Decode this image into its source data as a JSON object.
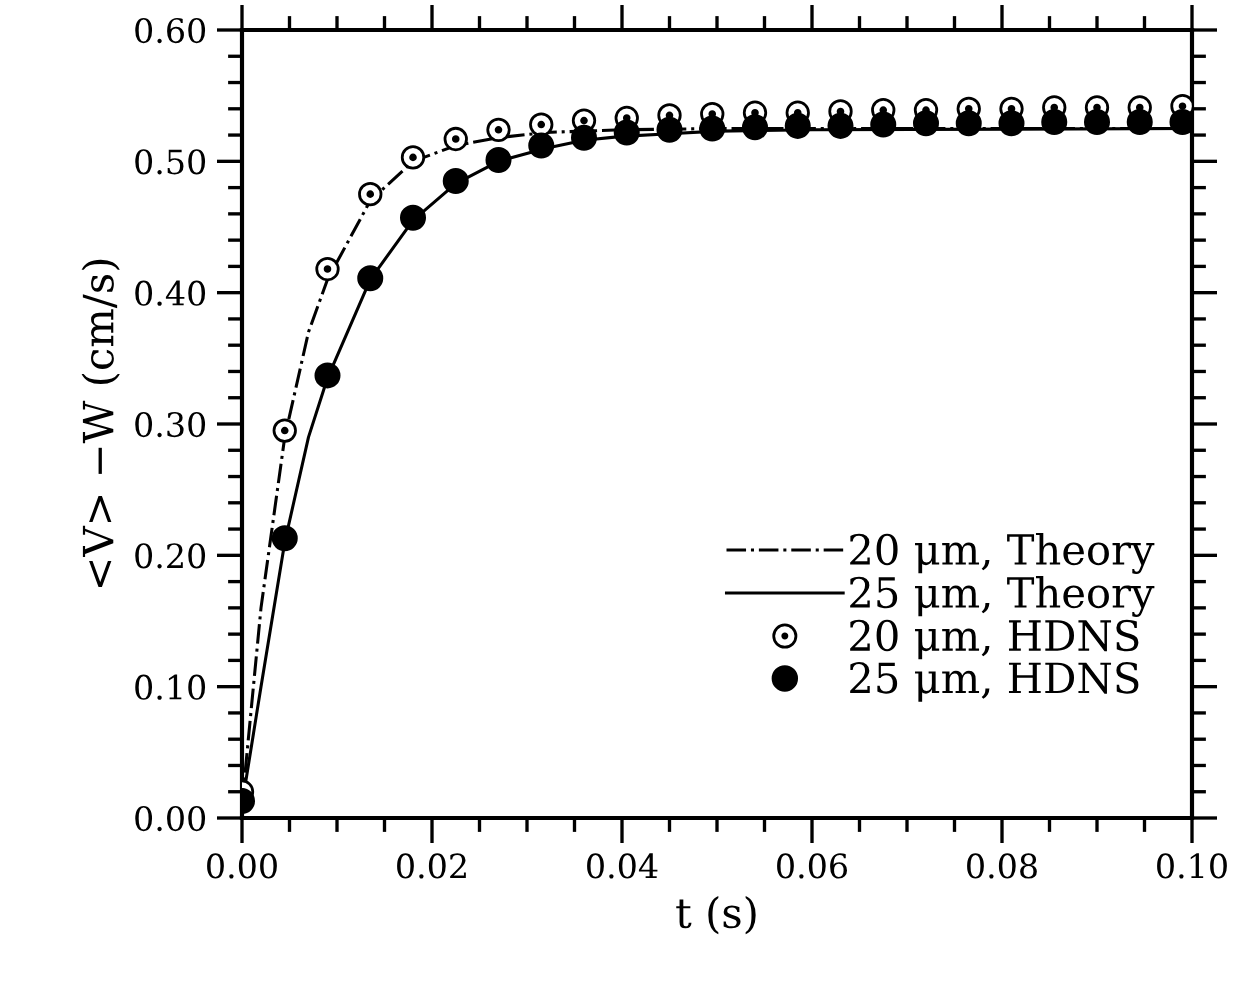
{
  "chart_data": {
    "type": "line",
    "xlabel": "t (s)",
    "ylabel": "<V> −W (cm/s)",
    "xlim": [
      0,
      0.1
    ],
    "ylim": [
      0,
      0.6
    ],
    "xticks": [
      {
        "value": 0,
        "label": "0.00"
      },
      {
        "value": 0.02,
        "label": "0.02"
      },
      {
        "value": 0.04,
        "label": "0.04"
      },
      {
        "value": 0.06,
        "label": "0.06"
      },
      {
        "value": 0.08,
        "label": "0.08"
      },
      {
        "value": 0.1,
        "label": "0.10"
      },
      {
        "value": 0.005,
        "label": null
      },
      {
        "value": 0.01,
        "label": null
      },
      {
        "value": 0.015,
        "label": null
      },
      {
        "value": 0.025,
        "label": null
      },
      {
        "value": 0.03,
        "label": null
      },
      {
        "value": 0.035,
        "label": null
      },
      {
        "value": 0.045,
        "label": null
      },
      {
        "value": 0.05,
        "label": null
      },
      {
        "value": 0.055,
        "label": null
      },
      {
        "value": 0.065,
        "label": null
      },
      {
        "value": 0.07,
        "label": null
      },
      {
        "value": 0.075,
        "label": null
      },
      {
        "value": 0.085,
        "label": null
      },
      {
        "value": 0.09,
        "label": null
      },
      {
        "value": 0.095,
        "label": null
      }
    ],
    "yticks": [
      {
        "value": 0,
        "label": "0.00"
      },
      {
        "value": 0.1,
        "label": "0.10"
      },
      {
        "value": 0.2,
        "label": "0.20"
      },
      {
        "value": 0.3,
        "label": "0.30"
      },
      {
        "value": 0.4,
        "label": "0.40"
      },
      {
        "value": 0.5,
        "label": "0.50"
      },
      {
        "value": 0.6,
        "label": "0.60"
      },
      {
        "value": 0.02,
        "label": null
      },
      {
        "value": 0.04,
        "label": null
      },
      {
        "value": 0.06,
        "label": null
      },
      {
        "value": 0.08,
        "label": null
      },
      {
        "value": 0.12,
        "label": null
      },
      {
        "value": 0.14,
        "label": null
      },
      {
        "value": 0.16,
        "label": null
      },
      {
        "value": 0.18,
        "label": null
      },
      {
        "value": 0.22,
        "label": null
      },
      {
        "value": 0.24,
        "label": null
      },
      {
        "value": 0.26,
        "label": null
      },
      {
        "value": 0.28,
        "label": null
      },
      {
        "value": 0.32,
        "label": null
      },
      {
        "value": 0.34,
        "label": null
      },
      {
        "value": 0.36,
        "label": null
      },
      {
        "value": 0.38,
        "label": null
      },
      {
        "value": 0.42,
        "label": null
      },
      {
        "value": 0.44,
        "label": null
      },
      {
        "value": 0.46,
        "label": null
      },
      {
        "value": 0.48,
        "label": null
      },
      {
        "value": 0.52,
        "label": null
      },
      {
        "value": 0.54,
        "label": null
      },
      {
        "value": 0.56,
        "label": null
      },
      {
        "value": 0.58,
        "label": null
      }
    ],
    "grid": false,
    "legend": "bottom right",
    "series": [
      {
        "name": "20 μm, Theory",
        "line_style": "dashdot",
        "color": "#000000",
        "x": [
          0,
          0.002,
          0.0045,
          0.007,
          0.009,
          0.0135,
          0.018,
          0.0225,
          0.027,
          0.032,
          0.04,
          0.05,
          0.1
        ],
        "values": [
          0.01,
          0.16,
          0.29,
          0.37,
          0.41,
          0.47,
          0.5,
          0.512,
          0.518,
          0.522,
          0.524,
          0.525,
          0.525
        ]
      },
      {
        "name": "25 μm, Theory",
        "line_style": "solid",
        "color": "#000000",
        "x": [
          0,
          0.002,
          0.0045,
          0.007,
          0.009,
          0.0135,
          0.018,
          0.0225,
          0.027,
          0.032,
          0.036,
          0.04,
          0.045,
          0.05,
          0.06,
          0.1
        ],
        "values": [
          0.01,
          0.1,
          0.21,
          0.29,
          0.335,
          0.41,
          0.455,
          0.483,
          0.5,
          0.51,
          0.516,
          0.519,
          0.521,
          0.523,
          0.524,
          0.525
        ]
      },
      {
        "name": "20 μm, HDNS",
        "type": "scatter",
        "marker": "dotted_circle",
        "color": "#000000",
        "x": [
          0,
          0.0045,
          0.009,
          0.0135,
          0.018,
          0.0225,
          0.027,
          0.0315,
          0.036,
          0.0405,
          0.045,
          0.0495,
          0.054,
          0.0585,
          0.063,
          0.0675,
          0.072,
          0.0765,
          0.081,
          0.0855,
          0.09,
          0.0945,
          0.099
        ],
        "values": [
          0.02,
          0.295,
          0.418,
          0.475,
          0.503,
          0.517,
          0.524,
          0.528,
          0.531,
          0.533,
          0.535,
          0.536,
          0.537,
          0.537,
          0.538,
          0.539,
          0.539,
          0.54,
          0.54,
          0.541,
          0.541,
          0.541,
          0.542
        ]
      },
      {
        "name": "25 μm, HDNS",
        "type": "scatter",
        "marker": "circle",
        "color": "#000000",
        "x": [
          0,
          0.0045,
          0.009,
          0.0135,
          0.018,
          0.0225,
          0.027,
          0.0315,
          0.036,
          0.0405,
          0.045,
          0.0495,
          0.054,
          0.0585,
          0.063,
          0.0675,
          0.072,
          0.0765,
          0.081,
          0.0855,
          0.09,
          0.0945,
          0.099
        ],
        "values": [
          0.013,
          0.213,
          0.337,
          0.411,
          0.457,
          0.485,
          0.501,
          0.512,
          0.518,
          0.522,
          0.524,
          0.525,
          0.526,
          0.527,
          0.527,
          0.528,
          0.529,
          0.529,
          0.529,
          0.53,
          0.53,
          0.53,
          0.53
        ]
      }
    ]
  }
}
